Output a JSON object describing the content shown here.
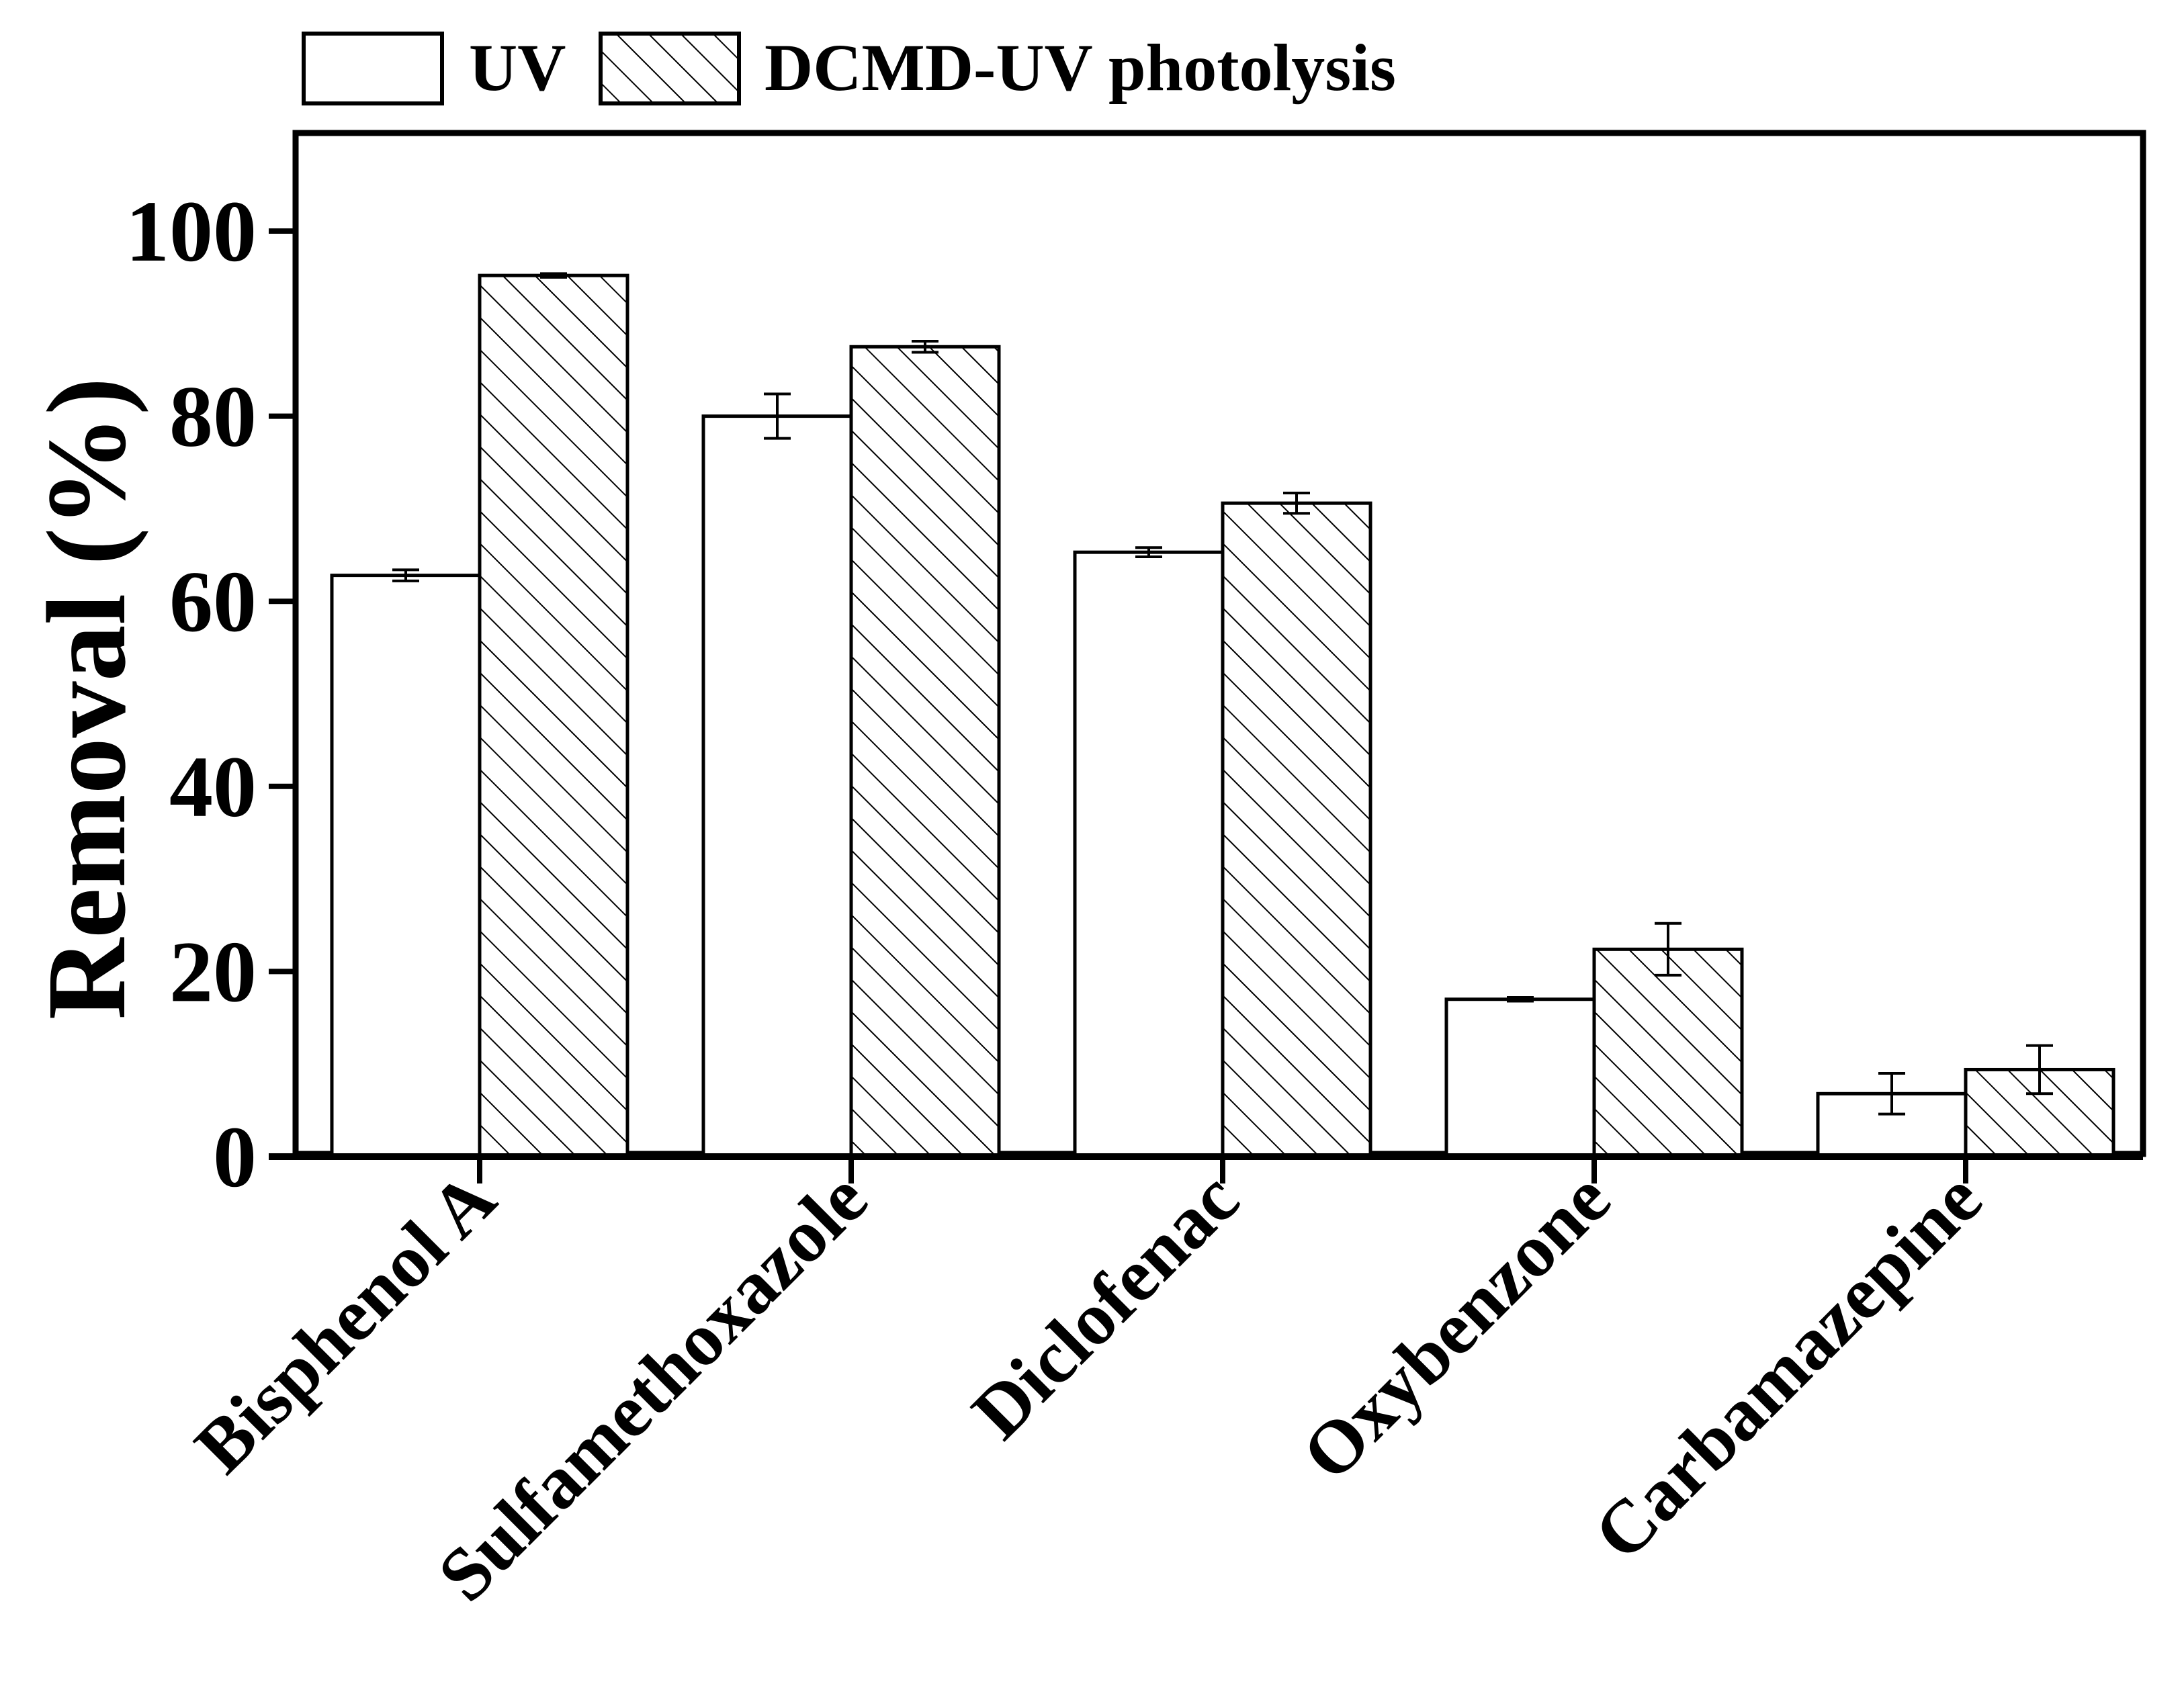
{
  "chart_data": {
    "type": "bar",
    "title": "",
    "xlabel": "",
    "ylabel": "Removal (%)",
    "ylim": [
      0,
      110
    ],
    "yticks": [
      0,
      20,
      40,
      60,
      80,
      100
    ],
    "yticklabels": [
      "0",
      "20",
      "40",
      "60",
      "80",
      "100"
    ],
    "grid": false,
    "legend_position": "top-left, above plot",
    "categories": [
      "Bisphenol A",
      "Sulfamethoxazole",
      "Diclofenac",
      "Oxybenzone",
      "Carbamazepine"
    ],
    "series": [
      {
        "name": "UV",
        "fill": "none",
        "values": [
          62.8,
          80.0,
          65.3,
          17.0,
          6.8
        ],
        "errors": [
          0.6,
          2.4,
          0.5,
          0.2,
          2.2
        ]
      },
      {
        "name": "DCMD-UV photolysis",
        "fill": "hatched",
        "values": [
          95.2,
          87.5,
          70.6,
          22.4,
          9.4
        ],
        "errors": [
          0.2,
          0.6,
          1.1,
          2.8,
          2.6
        ]
      }
    ]
  },
  "colors": {
    "axis": "#000000",
    "bar_edge": "#000000",
    "bar_fill": "#ffffff",
    "hatch": "#000000"
  }
}
